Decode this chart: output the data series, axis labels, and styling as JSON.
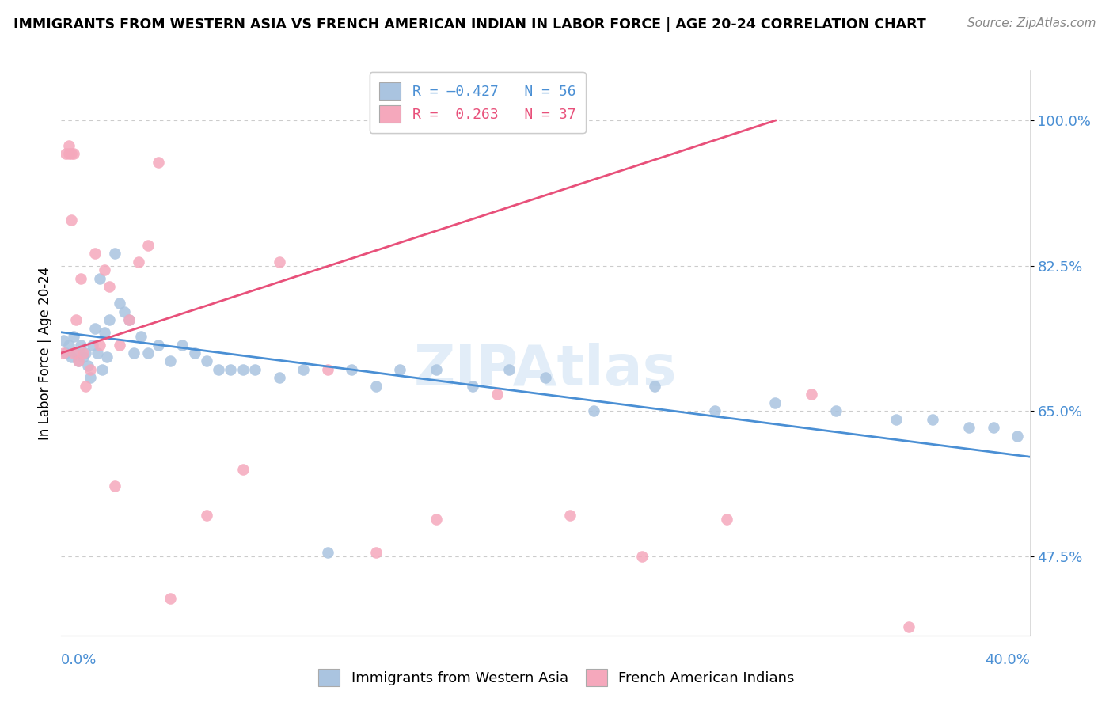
{
  "title": "IMMIGRANTS FROM WESTERN ASIA VS FRENCH AMERICAN INDIAN IN LABOR FORCE | AGE 20-24 CORRELATION CHART",
  "source": "Source: ZipAtlas.com",
  "ylabel": "In Labor Force | Age 20-24",
  "xlim": [
    0.0,
    0.4
  ],
  "ylim": [
    0.38,
    1.06
  ],
  "blue_color": "#aac4e0",
  "pink_color": "#f5a8bc",
  "blue_line_color": "#4a8fd4",
  "pink_line_color": "#e8507a",
  "legend_blue_label": "R = –0.427   N = 56",
  "legend_pink_label": "R =  0.263   N = 37",
  "y_ticks": [
    0.475,
    0.65,
    0.825,
    1.0
  ],
  "y_tick_labels": [
    "47.5%",
    "65.0%",
    "82.5%",
    "100.0%"
  ],
  "blue_x": [
    0.001,
    0.002,
    0.003,
    0.004,
    0.005,
    0.006,
    0.007,
    0.008,
    0.009,
    0.01,
    0.011,
    0.012,
    0.013,
    0.014,
    0.015,
    0.016,
    0.017,
    0.018,
    0.019,
    0.02,
    0.022,
    0.024,
    0.026,
    0.028,
    0.03,
    0.033,
    0.036,
    0.04,
    0.045,
    0.05,
    0.055,
    0.06,
    0.065,
    0.07,
    0.075,
    0.08,
    0.09,
    0.1,
    0.11,
    0.12,
    0.13,
    0.14,
    0.155,
    0.17,
    0.185,
    0.2,
    0.22,
    0.245,
    0.27,
    0.295,
    0.32,
    0.345,
    0.36,
    0.375,
    0.385,
    0.395
  ],
  "blue_y": [
    0.735,
    0.72,
    0.73,
    0.715,
    0.74,
    0.72,
    0.71,
    0.73,
    0.715,
    0.72,
    0.705,
    0.69,
    0.73,
    0.75,
    0.72,
    0.81,
    0.7,
    0.745,
    0.715,
    0.76,
    0.84,
    0.78,
    0.77,
    0.76,
    0.72,
    0.74,
    0.72,
    0.73,
    0.71,
    0.73,
    0.72,
    0.71,
    0.7,
    0.7,
    0.7,
    0.7,
    0.69,
    0.7,
    0.48,
    0.7,
    0.68,
    0.7,
    0.7,
    0.68,
    0.7,
    0.69,
    0.65,
    0.68,
    0.65,
    0.66,
    0.65,
    0.64,
    0.64,
    0.63,
    0.63,
    0.62
  ],
  "pink_x": [
    0.001,
    0.002,
    0.003,
    0.003,
    0.004,
    0.004,
    0.005,
    0.005,
    0.006,
    0.007,
    0.008,
    0.009,
    0.01,
    0.012,
    0.014,
    0.016,
    0.018,
    0.02,
    0.022,
    0.024,
    0.028,
    0.032,
    0.036,
    0.04,
    0.045,
    0.06,
    0.075,
    0.09,
    0.11,
    0.13,
    0.155,
    0.18,
    0.21,
    0.24,
    0.275,
    0.31,
    0.35
  ],
  "pink_y": [
    0.72,
    0.96,
    0.96,
    0.97,
    0.96,
    0.88,
    0.96,
    0.72,
    0.76,
    0.71,
    0.81,
    0.72,
    0.68,
    0.7,
    0.84,
    0.73,
    0.82,
    0.8,
    0.56,
    0.73,
    0.76,
    0.83,
    0.85,
    0.95,
    0.425,
    0.525,
    0.58,
    0.83,
    0.7,
    0.48,
    0.52,
    0.67,
    0.525,
    0.475,
    0.52,
    0.67,
    0.39
  ],
  "blue_trend_x0": 0.0,
  "blue_trend_x1": 0.4,
  "blue_trend_y0": 0.745,
  "blue_trend_y1": 0.595,
  "pink_trend_x0": 0.0,
  "pink_trend_x1": 0.295,
  "pink_trend_y0": 0.72,
  "pink_trend_y1": 1.0
}
